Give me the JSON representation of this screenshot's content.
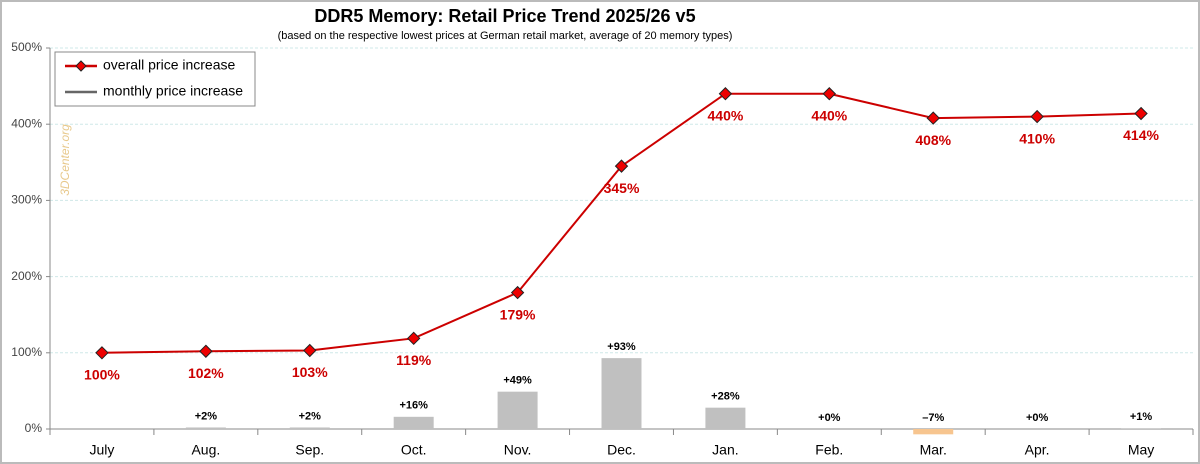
{
  "chart_data": {
    "type": "line",
    "title": "DDR5 Memory: Retail Price Trend 2025/26 v5",
    "subtitle": "(based on the respective lowest prices at German retail market, average of 20 memory types)",
    "watermark": "3DCenter.org",
    "categories": [
      "July",
      "Aug.",
      "Sep.",
      "Oct.",
      "Nov.",
      "Dec.",
      "Jan.",
      "Feb.",
      "Mar.",
      "Apr.",
      "May"
    ],
    "series": [
      {
        "name": "overall price increase",
        "type": "line",
        "color": "#cc0000",
        "values": [
          100,
          102,
          103,
          119,
          179,
          345,
          440,
          440,
          408,
          410,
          414
        ],
        "value_labels": [
          "100%",
          "102%",
          "103%",
          "119%",
          "179%",
          "345%",
          "440%",
          "440%",
          "408%",
          "410%",
          "414%"
        ]
      },
      {
        "name": "monthly price increase",
        "type": "bar",
        "color": "#c0c0c0",
        "negative_color": "#f7c58f",
        "values": [
          null,
          2,
          2,
          16,
          49,
          93,
          28,
          0,
          -7,
          0,
          1
        ],
        "value_labels": [
          null,
          "+2%",
          "+2%",
          "+16%",
          "+49%",
          "+93%",
          "+28%",
          "+0%",
          "–7%",
          "+0%",
          "+1%"
        ]
      }
    ],
    "ylim": [
      0,
      500
    ],
    "yticks": [
      {
        "value": 0,
        "label": "0%"
      },
      {
        "value": 100,
        "label": "100%"
      },
      {
        "value": 200,
        "label": "200%"
      },
      {
        "value": 300,
        "label": "300%"
      },
      {
        "value": 400,
        "label": "400%"
      },
      {
        "value": 500,
        "label": "500%"
      }
    ],
    "grid": true,
    "legend": "top-left"
  }
}
